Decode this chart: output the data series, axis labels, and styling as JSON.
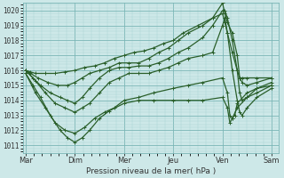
{
  "title": "Pression niveau de la mer( hPa )",
  "bg_color": "#cde8e8",
  "grid_major_color": "#7ab5b5",
  "grid_minor_color": "#a8d4d4",
  "line_color": "#2a5f2a",
  "ylim": [
    1010.5,
    1020.5
  ],
  "yticks": [
    1011,
    1012,
    1013,
    1014,
    1015,
    1016,
    1017,
    1018,
    1019,
    1020
  ],
  "day_labels": [
    "Mar",
    "Dim",
    "Mer",
    "Jeu",
    "Ven",
    "Sam"
  ],
  "xlim_left": -0.05,
  "xlim_right": 5.15,
  "series": [
    {
      "points": [
        [
          0,
          1015.8
        ],
        [
          0.15,
          1015.0
        ],
        [
          0.3,
          1014.2
        ],
        [
          0.5,
          1013.0
        ],
        [
          0.7,
          1012.0
        ],
        [
          0.85,
          1011.5
        ],
        [
          1.0,
          1011.2
        ],
        [
          1.15,
          1011.5
        ],
        [
          1.3,
          1012.0
        ],
        [
          1.5,
          1012.8
        ],
        [
          1.7,
          1013.3
        ],
        [
          2.0,
          1013.8
        ],
        [
          2.3,
          1014.0
        ],
        [
          2.6,
          1014.0
        ],
        [
          3.0,
          1014.0
        ],
        [
          3.3,
          1014.0
        ],
        [
          3.6,
          1014.0
        ],
        [
          4.0,
          1014.2
        ],
        [
          4.1,
          1013.5
        ],
        [
          4.15,
          1012.5
        ],
        [
          4.2,
          1012.8
        ],
        [
          4.3,
          1013.5
        ],
        [
          4.5,
          1014.2
        ],
        [
          4.7,
          1014.5
        ],
        [
          5.0,
          1015.0
        ]
      ]
    },
    {
      "points": [
        [
          0,
          1015.8
        ],
        [
          0.2,
          1014.5
        ],
        [
          0.4,
          1013.5
        ],
        [
          0.6,
          1012.5
        ],
        [
          0.8,
          1012.0
        ],
        [
          1.0,
          1011.8
        ],
        [
          1.2,
          1012.2
        ],
        [
          1.4,
          1012.8
        ],
        [
          1.6,
          1013.2
        ],
        [
          1.8,
          1013.5
        ],
        [
          2.0,
          1014.0
        ],
        [
          2.3,
          1014.2
        ],
        [
          2.6,
          1014.5
        ],
        [
          3.0,
          1014.8
        ],
        [
          3.3,
          1015.0
        ],
        [
          3.6,
          1015.2
        ],
        [
          4.0,
          1015.5
        ],
        [
          4.1,
          1014.5
        ],
        [
          4.15,
          1013.0
        ],
        [
          4.2,
          1012.8
        ],
        [
          4.25,
          1013.0
        ],
        [
          4.3,
          1013.8
        ],
        [
          4.5,
          1014.5
        ],
        [
          4.7,
          1014.8
        ],
        [
          5.0,
          1015.2
        ]
      ]
    },
    {
      "points": [
        [
          0,
          1016.0
        ],
        [
          0.2,
          1015.3
        ],
        [
          0.4,
          1014.5
        ],
        [
          0.6,
          1013.8
        ],
        [
          0.8,
          1013.5
        ],
        [
          1.0,
          1013.2
        ],
        [
          1.15,
          1013.5
        ],
        [
          1.3,
          1013.8
        ],
        [
          1.5,
          1014.5
        ],
        [
          1.7,
          1015.2
        ],
        [
          1.9,
          1015.5
        ],
        [
          2.1,
          1015.8
        ],
        [
          2.3,
          1015.8
        ],
        [
          2.5,
          1015.8
        ],
        [
          2.7,
          1016.0
        ],
        [
          2.9,
          1016.2
        ],
        [
          3.1,
          1016.5
        ],
        [
          3.3,
          1016.8
        ],
        [
          3.6,
          1017.0
        ],
        [
          3.8,
          1017.2
        ],
        [
          4.0,
          1019.0
        ],
        [
          4.05,
          1019.5
        ],
        [
          4.1,
          1018.5
        ],
        [
          4.2,
          1016.0
        ],
        [
          4.3,
          1014.0
        ],
        [
          4.35,
          1013.2
        ],
        [
          4.4,
          1013.0
        ],
        [
          4.5,
          1013.5
        ],
        [
          4.7,
          1014.2
        ],
        [
          5.0,
          1014.8
        ]
      ]
    },
    {
      "points": [
        [
          0,
          1016.0
        ],
        [
          0.15,
          1015.5
        ],
        [
          0.3,
          1015.0
        ],
        [
          0.5,
          1014.5
        ],
        [
          0.7,
          1014.2
        ],
        [
          0.85,
          1014.0
        ],
        [
          1.0,
          1013.8
        ],
        [
          1.15,
          1014.2
        ],
        [
          1.3,
          1014.8
        ],
        [
          1.5,
          1015.5
        ],
        [
          1.7,
          1016.0
        ],
        [
          1.9,
          1016.2
        ],
        [
          2.1,
          1016.2
        ],
        [
          2.3,
          1016.3
        ],
        [
          2.5,
          1016.3
        ],
        [
          2.7,
          1016.5
        ],
        [
          2.9,
          1016.8
        ],
        [
          3.1,
          1017.2
        ],
        [
          3.3,
          1017.5
        ],
        [
          3.6,
          1018.2
        ],
        [
          3.8,
          1019.0
        ],
        [
          4.0,
          1020.0
        ],
        [
          4.05,
          1020.0
        ],
        [
          4.1,
          1019.5
        ],
        [
          4.2,
          1018.0
        ],
        [
          4.3,
          1016.0
        ],
        [
          4.35,
          1014.5
        ],
        [
          4.4,
          1014.0
        ],
        [
          4.5,
          1014.2
        ],
        [
          4.7,
          1014.8
        ],
        [
          5.0,
          1015.0
        ]
      ]
    },
    {
      "points": [
        [
          0,
          1016.0
        ],
        [
          0.1,
          1015.8
        ],
        [
          0.25,
          1015.5
        ],
        [
          0.45,
          1015.2
        ],
        [
          0.65,
          1015.0
        ],
        [
          0.85,
          1015.0
        ],
        [
          1.0,
          1015.2
        ],
        [
          1.15,
          1015.5
        ],
        [
          1.3,
          1015.8
        ],
        [
          1.5,
          1016.0
        ],
        [
          1.7,
          1016.2
        ],
        [
          1.9,
          1016.5
        ],
        [
          2.1,
          1016.5
        ],
        [
          2.3,
          1016.5
        ],
        [
          2.5,
          1016.8
        ],
        [
          2.7,
          1017.2
        ],
        [
          2.9,
          1017.5
        ],
        [
          3.1,
          1018.0
        ],
        [
          3.3,
          1018.5
        ],
        [
          3.6,
          1019.0
        ],
        [
          3.8,
          1019.5
        ],
        [
          4.0,
          1020.5
        ],
        [
          4.05,
          1019.8
        ],
        [
          4.1,
          1019.2
        ],
        [
          4.2,
          1018.5
        ],
        [
          4.3,
          1017.0
        ],
        [
          4.35,
          1015.5
        ],
        [
          4.4,
          1015.2
        ],
        [
          4.5,
          1015.0
        ],
        [
          4.7,
          1015.2
        ],
        [
          5.0,
          1015.5
        ]
      ]
    },
    {
      "points": [
        [
          0,
          1016.0
        ],
        [
          0.1,
          1015.9
        ],
        [
          0.2,
          1015.8
        ],
        [
          0.4,
          1015.8
        ],
        [
          0.6,
          1015.8
        ],
        [
          0.8,
          1015.9
        ],
        [
          1.0,
          1016.0
        ],
        [
          1.2,
          1016.2
        ],
        [
          1.4,
          1016.3
        ],
        [
          1.6,
          1016.5
        ],
        [
          1.8,
          1016.8
        ],
        [
          2.0,
          1017.0
        ],
        [
          2.2,
          1017.2
        ],
        [
          2.4,
          1017.3
        ],
        [
          2.6,
          1017.5
        ],
        [
          2.8,
          1017.8
        ],
        [
          3.0,
          1018.0
        ],
        [
          3.2,
          1018.5
        ],
        [
          3.5,
          1019.0
        ],
        [
          3.8,
          1019.5
        ],
        [
          4.0,
          1019.8
        ],
        [
          4.05,
          1019.2
        ],
        [
          4.1,
          1018.5
        ],
        [
          4.2,
          1017.2
        ],
        [
          4.3,
          1016.0
        ],
        [
          4.35,
          1015.5
        ],
        [
          4.4,
          1015.5
        ],
        [
          4.5,
          1015.5
        ],
        [
          4.7,
          1015.5
        ],
        [
          5.0,
          1015.5
        ]
      ]
    }
  ]
}
